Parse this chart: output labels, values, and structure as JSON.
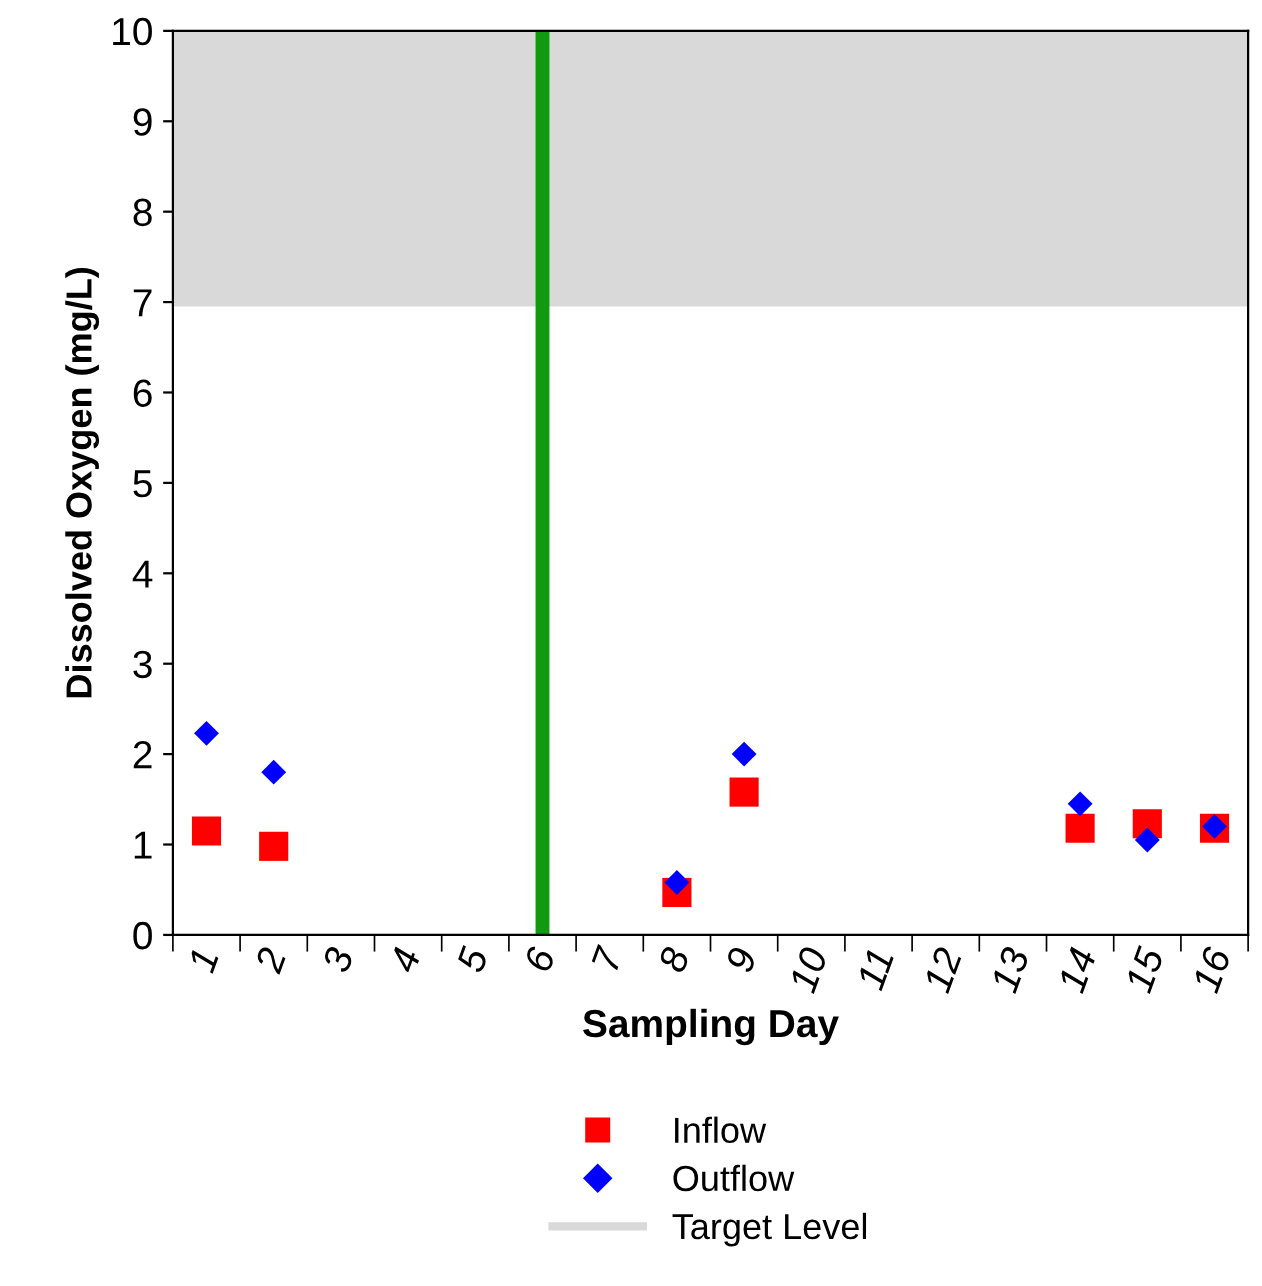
{
  "chart_data": {
    "type": "scatter",
    "xlabel": "Sampling Day",
    "ylabel": "Dissolved Oxygen (mg/L)",
    "categories": [
      "1",
      "2",
      "3",
      "4",
      "5",
      "6",
      "7",
      "8",
      "9",
      "10",
      "11",
      "12",
      "13",
      "14",
      "15",
      "16"
    ],
    "series": [
      {
        "name": "Inflow",
        "color": "#ff0000",
        "marker": "square",
        "values": [
          1.15,
          0.98,
          null,
          null,
          null,
          null,
          null,
          0.47,
          1.58,
          null,
          null,
          null,
          null,
          1.18,
          1.23,
          1.18
        ]
      },
      {
        "name": "Outflow",
        "color": "#0000ff",
        "marker": "diamond",
        "values": [
          2.23,
          1.8,
          null,
          null,
          null,
          null,
          null,
          0.58,
          2.0,
          null,
          null,
          null,
          null,
          1.45,
          1.05,
          1.2
        ]
      }
    ],
    "ylim": [
      0,
      10
    ],
    "yticks": [
      0,
      1,
      2,
      3,
      4,
      5,
      6,
      7,
      8,
      9,
      10
    ],
    "bands": [
      {
        "axis": "y",
        "from": 6.95,
        "to": 10,
        "label": "Target Level",
        "color": "#d9d9d9"
      }
    ],
    "ref_lines": [
      {
        "axis": "x",
        "value": "6",
        "color": "#119911"
      }
    ],
    "legend": "bottom",
    "grid": false
  }
}
